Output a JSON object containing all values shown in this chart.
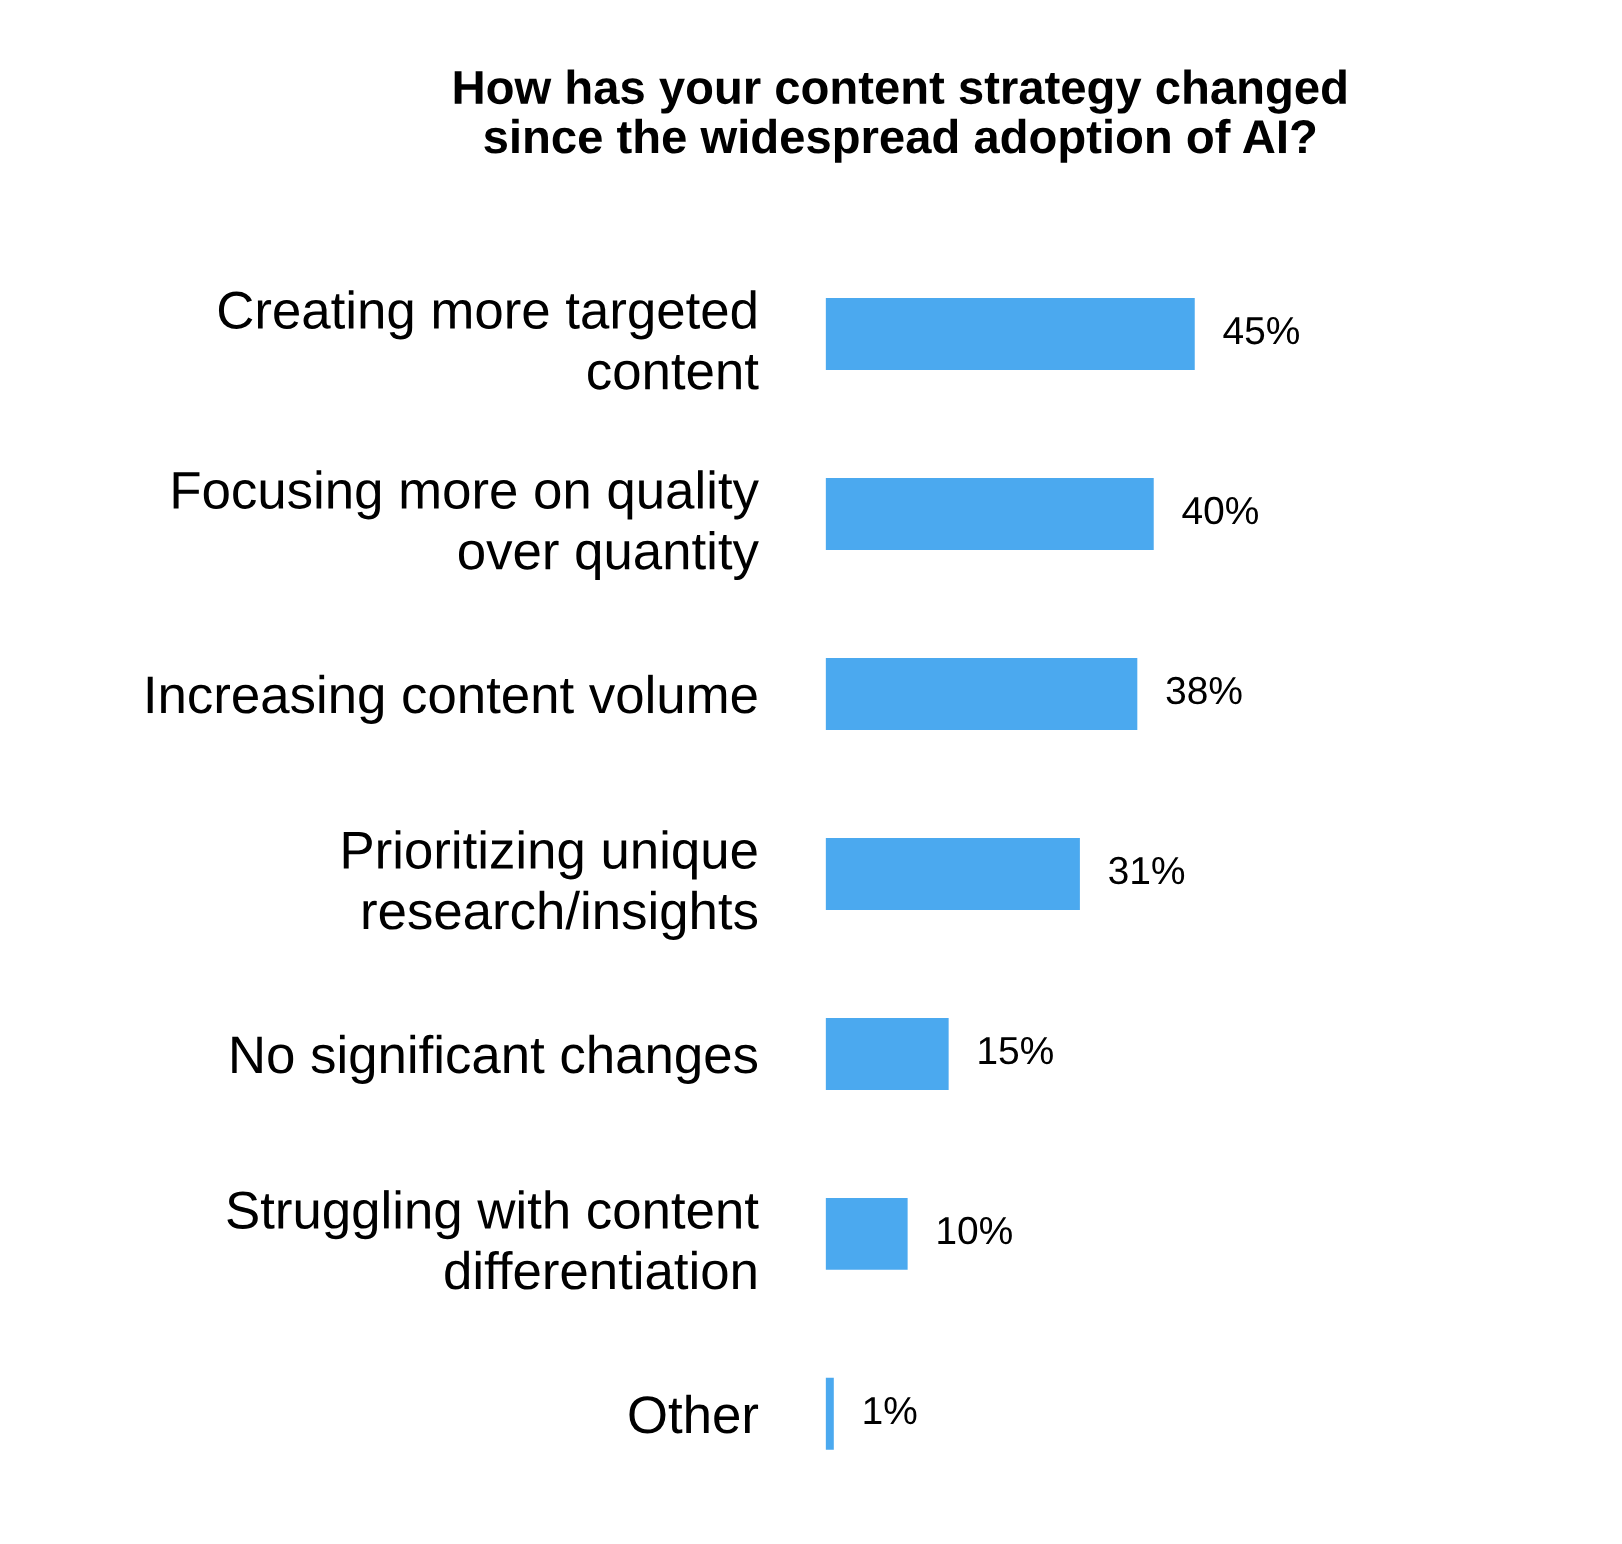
{
  "chart_data": {
    "type": "bar",
    "orientation": "horizontal",
    "title": "How has your content strategy changed\nsince the widespread adoption of AI?",
    "categories": [
      "Creating more targeted\ncontent",
      "Focusing more on quality\nover quantity",
      "Increasing content volume",
      "Prioritizing unique\nresearch/insights",
      "No significant changes",
      "Struggling with content\ndifferentiation",
      "Other"
    ],
    "values": [
      45,
      40,
      38,
      31,
      15,
      10,
      1
    ],
    "value_labels": [
      "45%",
      "40%",
      "38%",
      "31%",
      "15%",
      "10%",
      "1%"
    ],
    "color": "#4ba9ef",
    "grid": false,
    "legend": false,
    "tick_labels": "y"
  }
}
